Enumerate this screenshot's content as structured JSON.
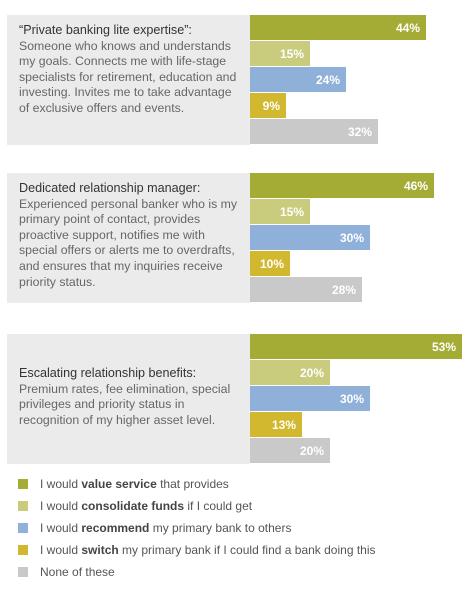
{
  "chart_data": {
    "type": "bar",
    "orientation": "horizontal",
    "value_format": "percent",
    "colors": [
      "#a4ac35",
      "#c8cc7c",
      "#8fb0d8",
      "#d2b82f",
      "#c9c9c9"
    ],
    "groups": [
      {
        "heading": "“Private banking lite expertise”:",
        "body": "Someone who knows and understands my goals. Connects me with life-stage specialists for retirement, education and investing. Invites me to take advantage of exclusive offers and events.",
        "values": [
          44,
          15,
          24,
          9,
          32
        ],
        "labels": [
          "44%",
          "15%",
          "24%",
          "9%",
          "32%"
        ]
      },
      {
        "heading": "Dedicated relationship manager:",
        "body": "Experienced personal banker who is my primary point of contact, provides proactive support, notifies me with special offers or alerts me to overdrafts, and ensures that my inquiries receive priority status.",
        "values": [
          46,
          15,
          30,
          10,
          28
        ],
        "labels": [
          "46%",
          "15%",
          "30%",
          "10%",
          "28%"
        ]
      },
      {
        "heading": "Escalating relationship benefits:",
        "body": "Premium rates, fee elimination, special privileges and priority status in recognition of my higher asset level.",
        "values": [
          53,
          20,
          30,
          13,
          20
        ],
        "labels": [
          "53%",
          "20%",
          "30%",
          "13%",
          "20%"
        ]
      }
    ],
    "legend": [
      {
        "pre": "I would ",
        "bold": "value service",
        "post": " that provides"
      },
      {
        "pre": "I would ",
        "bold": "consolidate funds",
        "post": " if I could get"
      },
      {
        "pre": "I would ",
        "bold": "recommend",
        "post": " my primary bank to others"
      },
      {
        "pre": "I would ",
        "bold": "switch",
        "post": " my primary bank if I could find a bank doing this"
      },
      {
        "pre": "",
        "bold": "",
        "post": "None of these"
      }
    ]
  }
}
